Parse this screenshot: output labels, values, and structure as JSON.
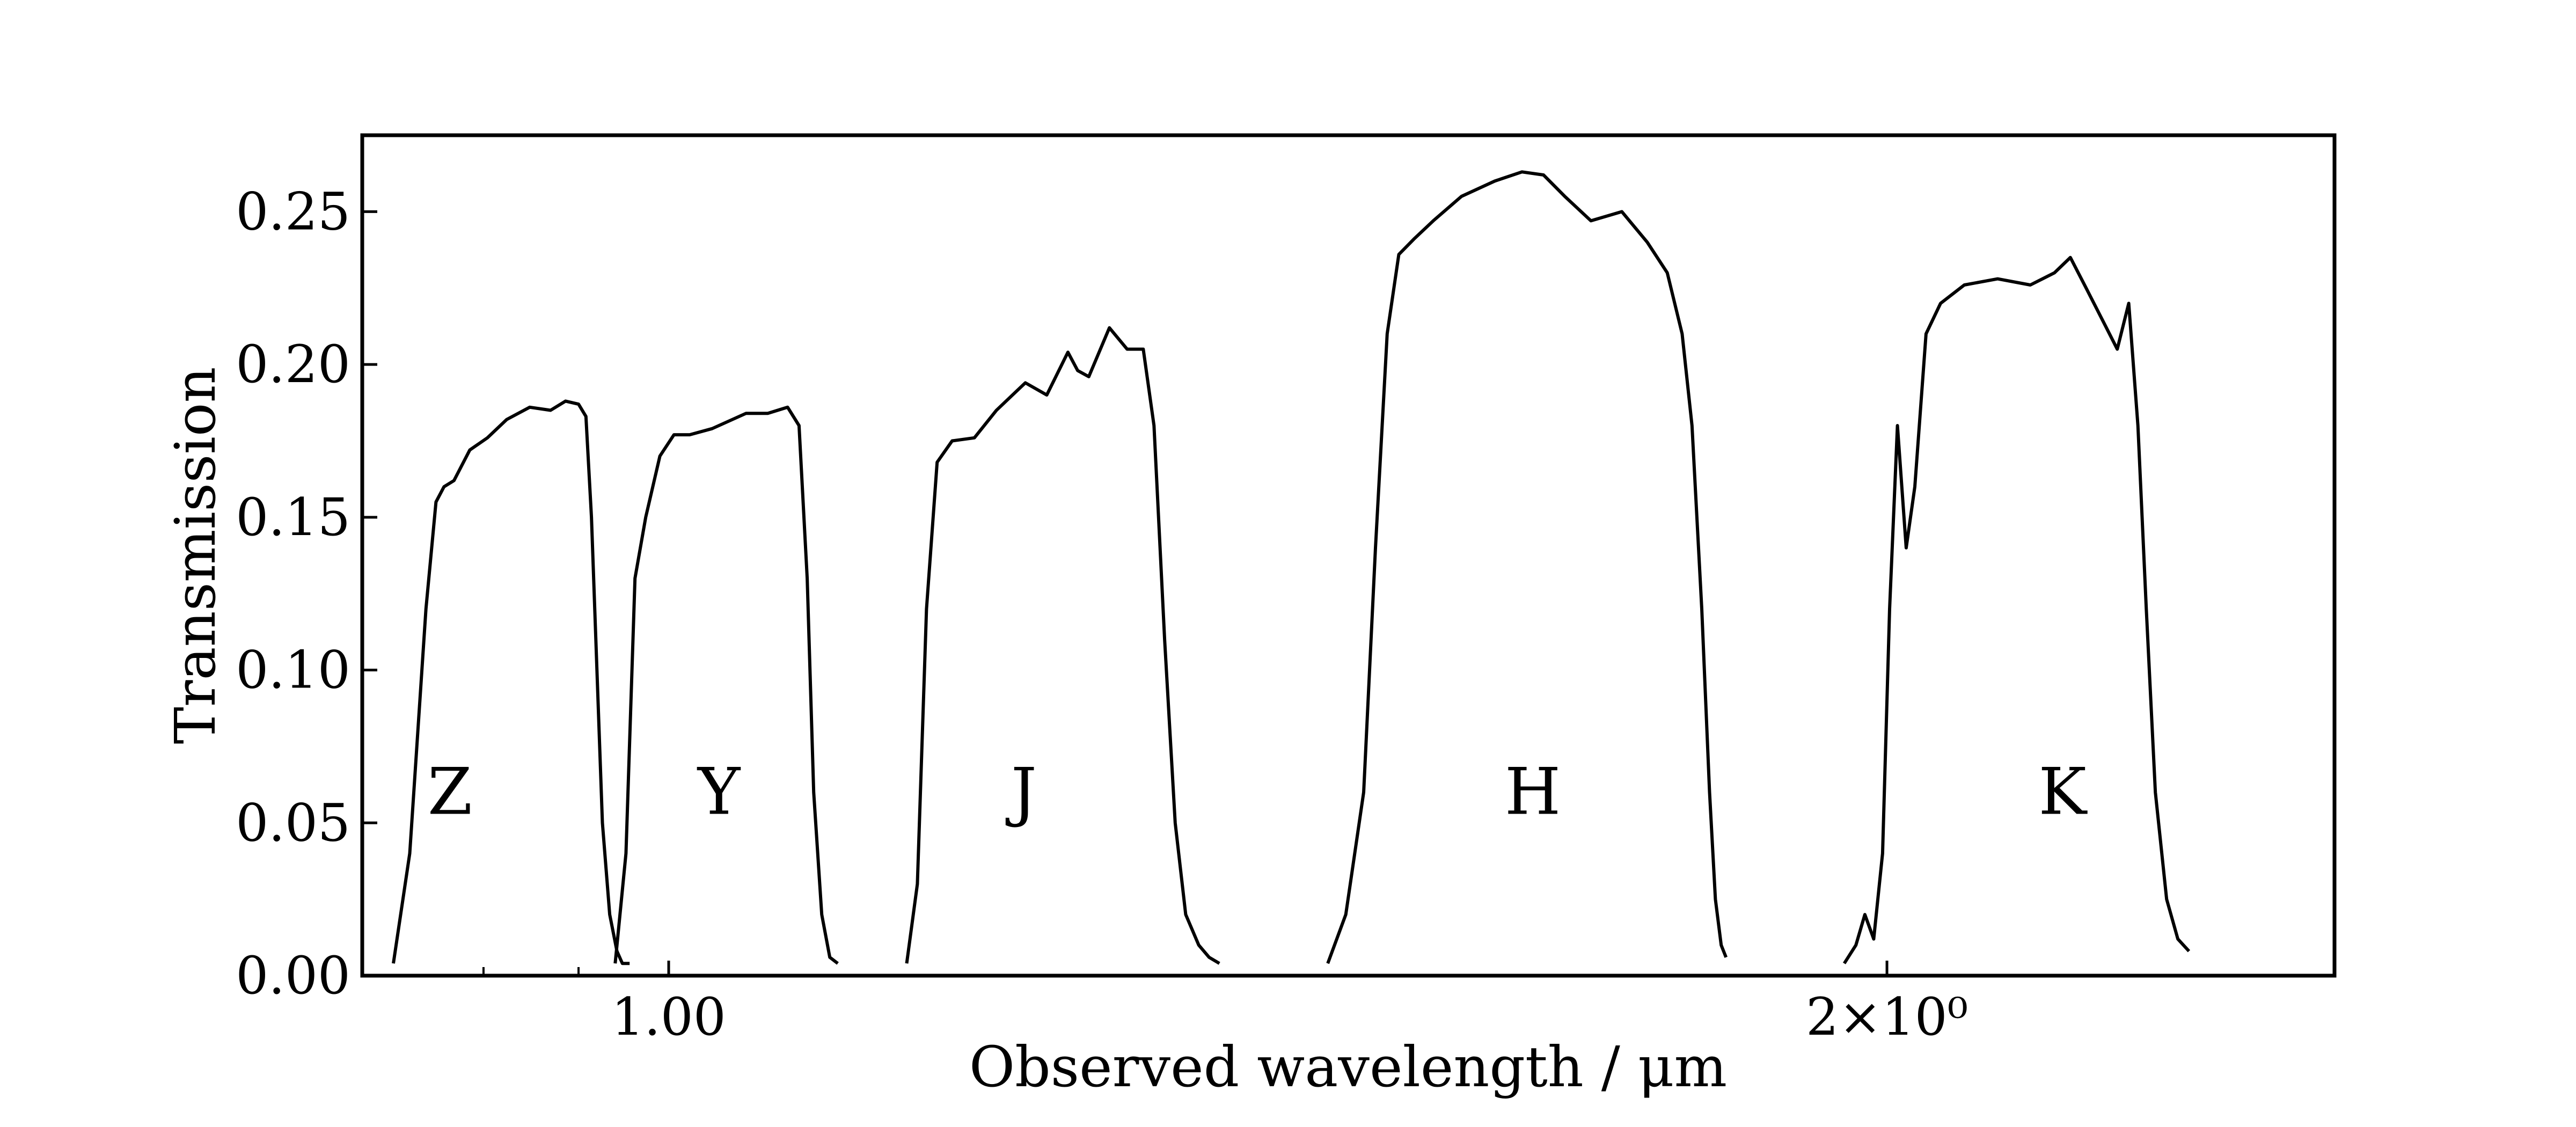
{
  "chart_data": {
    "type": "line",
    "xlabel": "Observed wavelength / μm",
    "ylabel": "Transmission",
    "xscale": "log",
    "xlim": [
      0.84,
      2.58
    ],
    "ylim": [
      0.0,
      0.275
    ],
    "grid": false,
    "legend": "none",
    "line_color": "#000000",
    "x_ticks": [
      {
        "value": 1.0,
        "label": "1.00"
      },
      {
        "value": 2.0,
        "label": "2×10⁰"
      }
    ],
    "x_minor_ticks": [
      0.9,
      0.95
    ],
    "y_ticks": [
      {
        "value": 0.0,
        "label": "0.00"
      },
      {
        "value": 0.05,
        "label": "0.05"
      },
      {
        "value": 0.1,
        "label": "0.10"
      },
      {
        "value": 0.15,
        "label": "0.15"
      },
      {
        "value": 0.2,
        "label": "0.20"
      },
      {
        "value": 0.25,
        "label": "0.25"
      }
    ],
    "series": [
      {
        "name": "Z",
        "label_x": 0.883,
        "label_y": 0.06,
        "x": [
          0.855,
          0.863,
          0.871,
          0.876,
          0.88,
          0.885,
          0.893,
          0.902,
          0.912,
          0.924,
          0.935,
          0.943,
          0.95,
          0.954,
          0.957,
          0.96,
          0.963,
          0.967,
          0.971,
          0.974,
          0.978
        ],
        "y": [
          0.004,
          0.04,
          0.12,
          0.155,
          0.16,
          0.162,
          0.172,
          0.176,
          0.182,
          0.186,
          0.185,
          0.188,
          0.187,
          0.183,
          0.15,
          0.1,
          0.05,
          0.02,
          0.008,
          0.004,
          0.004
        ]
      },
      {
        "name": "Y",
        "label_x": 1.029,
        "label_y": 0.06,
        "x": [
          0.97,
          0.976,
          0.981,
          0.987,
          0.995,
          1.003,
          1.012,
          1.025,
          1.045,
          1.058,
          1.07,
          1.077,
          1.082,
          1.086,
          1.091,
          1.096,
          1.101
        ],
        "y": [
          0.004,
          0.04,
          0.13,
          0.15,
          0.17,
          0.177,
          0.177,
          0.179,
          0.184,
          0.184,
          0.186,
          0.18,
          0.13,
          0.06,
          0.02,
          0.006,
          0.004
        ]
      },
      {
        "name": "J",
        "label_x": 1.224,
        "label_y": 0.06,
        "x": [
          1.145,
          1.152,
          1.158,
          1.165,
          1.175,
          1.19,
          1.205,
          1.225,
          1.24,
          1.255,
          1.262,
          1.27,
          1.285,
          1.298,
          1.31,
          1.318,
          1.326,
          1.334,
          1.342,
          1.352,
          1.36,
          1.368
        ],
        "y": [
          0.004,
          0.03,
          0.12,
          0.168,
          0.175,
          0.176,
          0.185,
          0.194,
          0.19,
          0.204,
          0.198,
          0.196,
          0.212,
          0.205,
          0.205,
          0.18,
          0.11,
          0.05,
          0.02,
          0.01,
          0.006,
          0.004
        ]
      },
      {
        "name": "H",
        "label_x": 1.635,
        "label_y": 0.06,
        "x": [
          1.455,
          1.47,
          1.485,
          1.495,
          1.505,
          1.515,
          1.528,
          1.545,
          1.57,
          1.6,
          1.625,
          1.645,
          1.665,
          1.69,
          1.72,
          1.745,
          1.765,
          1.78,
          1.79,
          1.8,
          1.808,
          1.814,
          1.82,
          1.825
        ],
        "y": [
          0.004,
          0.02,
          0.06,
          0.14,
          0.21,
          0.236,
          0.241,
          0.247,
          0.255,
          0.26,
          0.263,
          0.262,
          0.255,
          0.247,
          0.25,
          0.24,
          0.23,
          0.21,
          0.18,
          0.12,
          0.06,
          0.025,
          0.01,
          0.006
        ]
      },
      {
        "name": "K",
        "label_x": 2.21,
        "label_y": 0.06,
        "x": [
          1.952,
          1.965,
          1.975,
          1.985,
          1.995,
          2.003,
          2.012,
          2.022,
          2.032,
          2.045,
          2.062,
          2.09,
          2.13,
          2.17,
          2.2,
          2.22,
          2.24,
          2.26,
          2.28,
          2.295,
          2.307,
          2.318,
          2.33,
          2.345,
          2.36,
          2.375
        ],
        "y": [
          0.004,
          0.01,
          0.02,
          0.012,
          0.04,
          0.12,
          0.18,
          0.14,
          0.16,
          0.21,
          0.22,
          0.226,
          0.228,
          0.226,
          0.23,
          0.235,
          0.225,
          0.215,
          0.205,
          0.22,
          0.18,
          0.12,
          0.06,
          0.025,
          0.012,
          0.008
        ]
      }
    ]
  }
}
